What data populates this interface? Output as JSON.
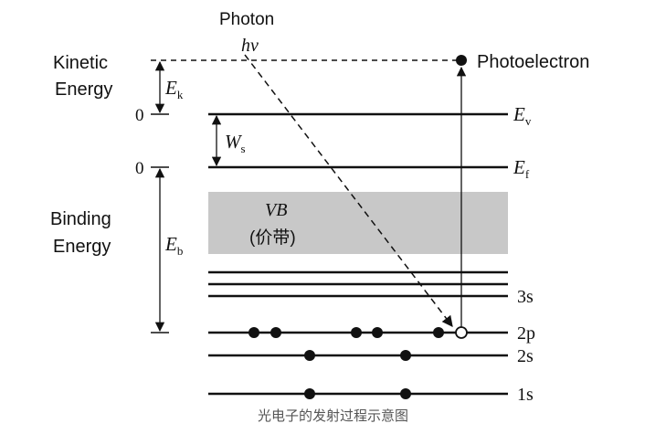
{
  "labels": {
    "photon": "Photon",
    "photon_energy": "hv",
    "photoelectron": "Photoelectron",
    "kinetic_energy_line1": "Kinetic",
    "kinetic_energy_line2": "Energy",
    "binding_energy_line1": "Binding",
    "binding_energy_line2": "Energy",
    "zero_vacuum": "0",
    "zero_fermi": "0",
    "ek": "E",
    "ek_sub": "k",
    "eb": "E",
    "eb_sub": "b",
    "ws": "W",
    "ws_sub": "s",
    "ev": "E",
    "ev_sub": "v",
    "ef": "E",
    "ef_sub": "f",
    "vb": "VB",
    "vb_cn": "(价带)",
    "level_3s": "3s",
    "level_2p": "2p",
    "level_2s": "2s",
    "level_1s": "1s"
  },
  "colors": {
    "line": "#111111",
    "band": "#c8c8c8",
    "caption": "#555555"
  },
  "caption": "光电子的发射过程示意图"
}
